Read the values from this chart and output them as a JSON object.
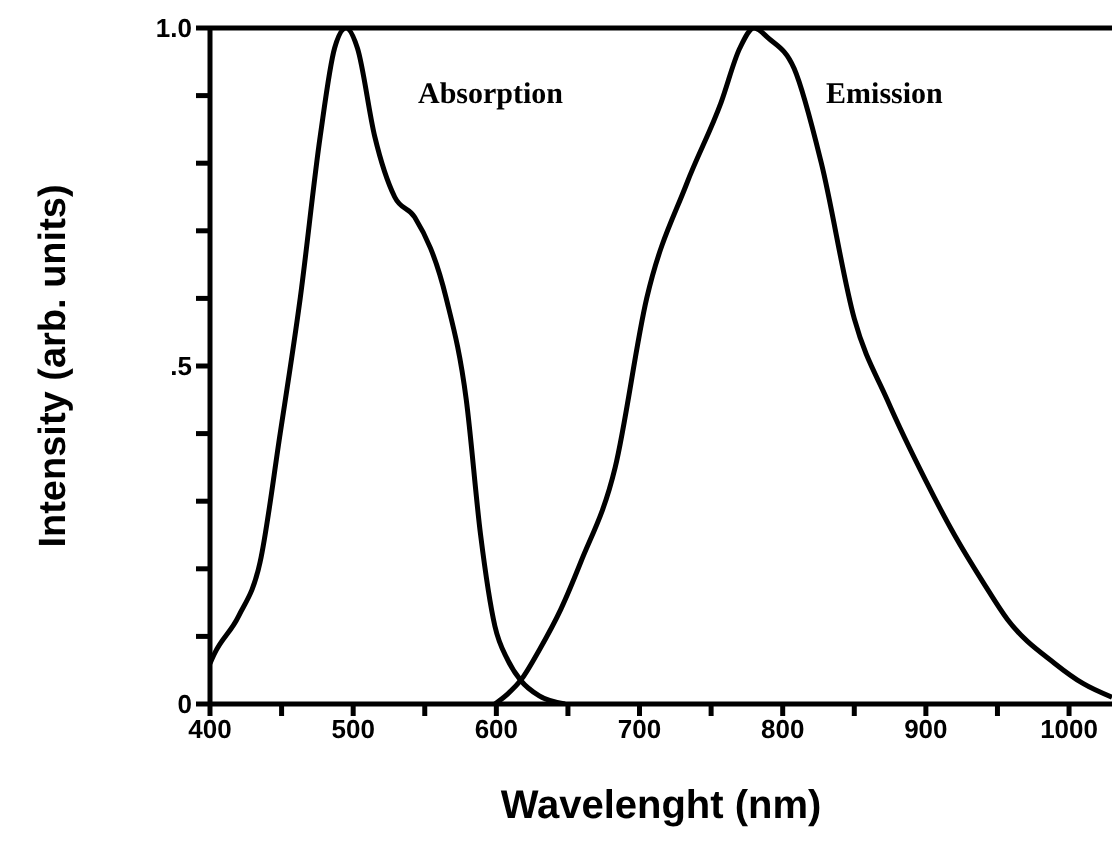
{
  "chart_data": {
    "type": "line",
    "xlabel": "Wavelenght (nm)",
    "ylabel": "Intensity (arb. units)",
    "xlim": [
      400,
      1030
    ],
    "ylim": [
      0,
      1
    ],
    "xticks": [
      400,
      {
        "value": 450,
        "label": null
      },
      500,
      {
        "value": 550,
        "label": null
      },
      600,
      {
        "value": 650,
        "label": null
      },
      700,
      {
        "value": 750,
        "label": null
      },
      800,
      {
        "value": 850,
        "label": null
      },
      900,
      {
        "value": 950,
        "label": null
      },
      1000
    ],
    "yticks": [
      0,
      {
        "value": 0.1,
        "label": null
      },
      {
        "value": 0.2,
        "label": null
      },
      {
        "value": 0.3,
        "label": null
      },
      {
        "value": 0.4,
        "label": null
      },
      {
        "value": 0.5,
        "label": ".5"
      },
      {
        "value": 0.6,
        "label": null
      },
      {
        "value": 0.7,
        "label": null
      },
      {
        "value": 0.8,
        "label": null
      },
      {
        "value": 0.9,
        "label": null
      },
      {
        "value": 1,
        "label": "1.0"
      }
    ],
    "grid": false,
    "legend": false,
    "marker": "none",
    "line_style": "solid",
    "series": [
      {
        "name": "Absorption",
        "color": "#000000",
        "x": [
          400,
          403,
          420,
          435,
          449,
          463,
          477,
          487,
          495,
          503,
          515,
          529,
          543,
          565,
          579,
          589,
          599,
          608,
          617,
          630,
          648
        ],
        "values": [
          0.06,
          0.074,
          0.13,
          0.21,
          0.4,
          0.6,
          0.84,
          0.97,
          1.0,
          0.97,
          0.84,
          0.75,
          0.72,
          0.6,
          0.45,
          0.25,
          0.115,
          0.065,
          0.035,
          0.012,
          0
        ]
      },
      {
        "name": "Emission",
        "color": "#000000",
        "x": [
          599,
          608,
          617,
          630,
          645,
          659,
          683,
          705,
          733,
          757,
          770,
          780,
          790,
          808,
          827,
          850,
          873,
          900,
          920,
          940,
          957,
          990,
          1010,
          1030
        ],
        "values": [
          0,
          0.015,
          0.035,
          0.08,
          0.14,
          0.21,
          0.35,
          0.6,
          0.77,
          0.89,
          0.97,
          1.0,
          0.985,
          0.94,
          0.8,
          0.57,
          0.45,
          0.33,
          0.25,
          0.18,
          0.125,
          0.06,
          0.03,
          0.01
        ]
      }
    ]
  }
}
